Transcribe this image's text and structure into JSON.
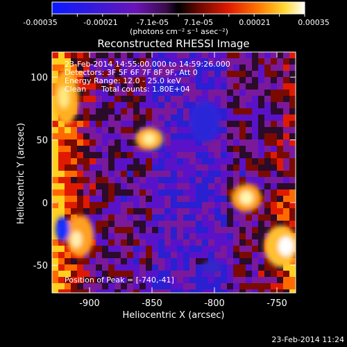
{
  "colorbar": {
    "tick_labels": [
      "-0.00035",
      "-0.00021",
      "-7.1e-05",
      "7.1e-05",
      "0.00021",
      "0.00035"
    ],
    "unit_label": "(photons cm⁻² s⁻¹ asec⁻²)",
    "range": [
      -0.00035,
      0.00035
    ],
    "colors": [
      "#0a1aff",
      "#2b1fd2",
      "#5a12c8",
      "#7a1a9a",
      "#2a0b2a",
      "#7a0a00",
      "#e01a00",
      "#ff6a00",
      "#ffd020",
      "#ffffff"
    ]
  },
  "title": "Reconstructed RHESSI Image",
  "info": {
    "time_range": "23-Feb-2014 14:55:00.000 to 14:59:26.000",
    "detectors": "Detectors: 3F 5F 6F 7F 8F 9F, Att 0",
    "energy": "Energy Range: 12.0 - 25.0 keV",
    "method": "Clean",
    "counts": "Total counts: 1.80E+04"
  },
  "peak_label": "Position of Peak = [-740,-41]",
  "axes": {
    "xlabel": "Heliocentric X (arcsec)",
    "ylabel": "Heliocentric Y (arcsec)",
    "xticks": [
      {
        "value": -900,
        "label": "-900"
      },
      {
        "value": -850,
        "label": "-850"
      },
      {
        "value": -800,
        "label": "-800"
      },
      {
        "value": -750,
        "label": "-750"
      }
    ],
    "yticks": [
      {
        "value": 100,
        "label": "100"
      },
      {
        "value": 50,
        "label": "50"
      },
      {
        "value": 0,
        "label": "0"
      },
      {
        "value": -50,
        "label": "-50"
      }
    ],
    "xlim": [
      -930,
      -735
    ],
    "ylim": [
      -72,
      120
    ]
  },
  "footer_date": "23-Feb-2014 11:24"
}
